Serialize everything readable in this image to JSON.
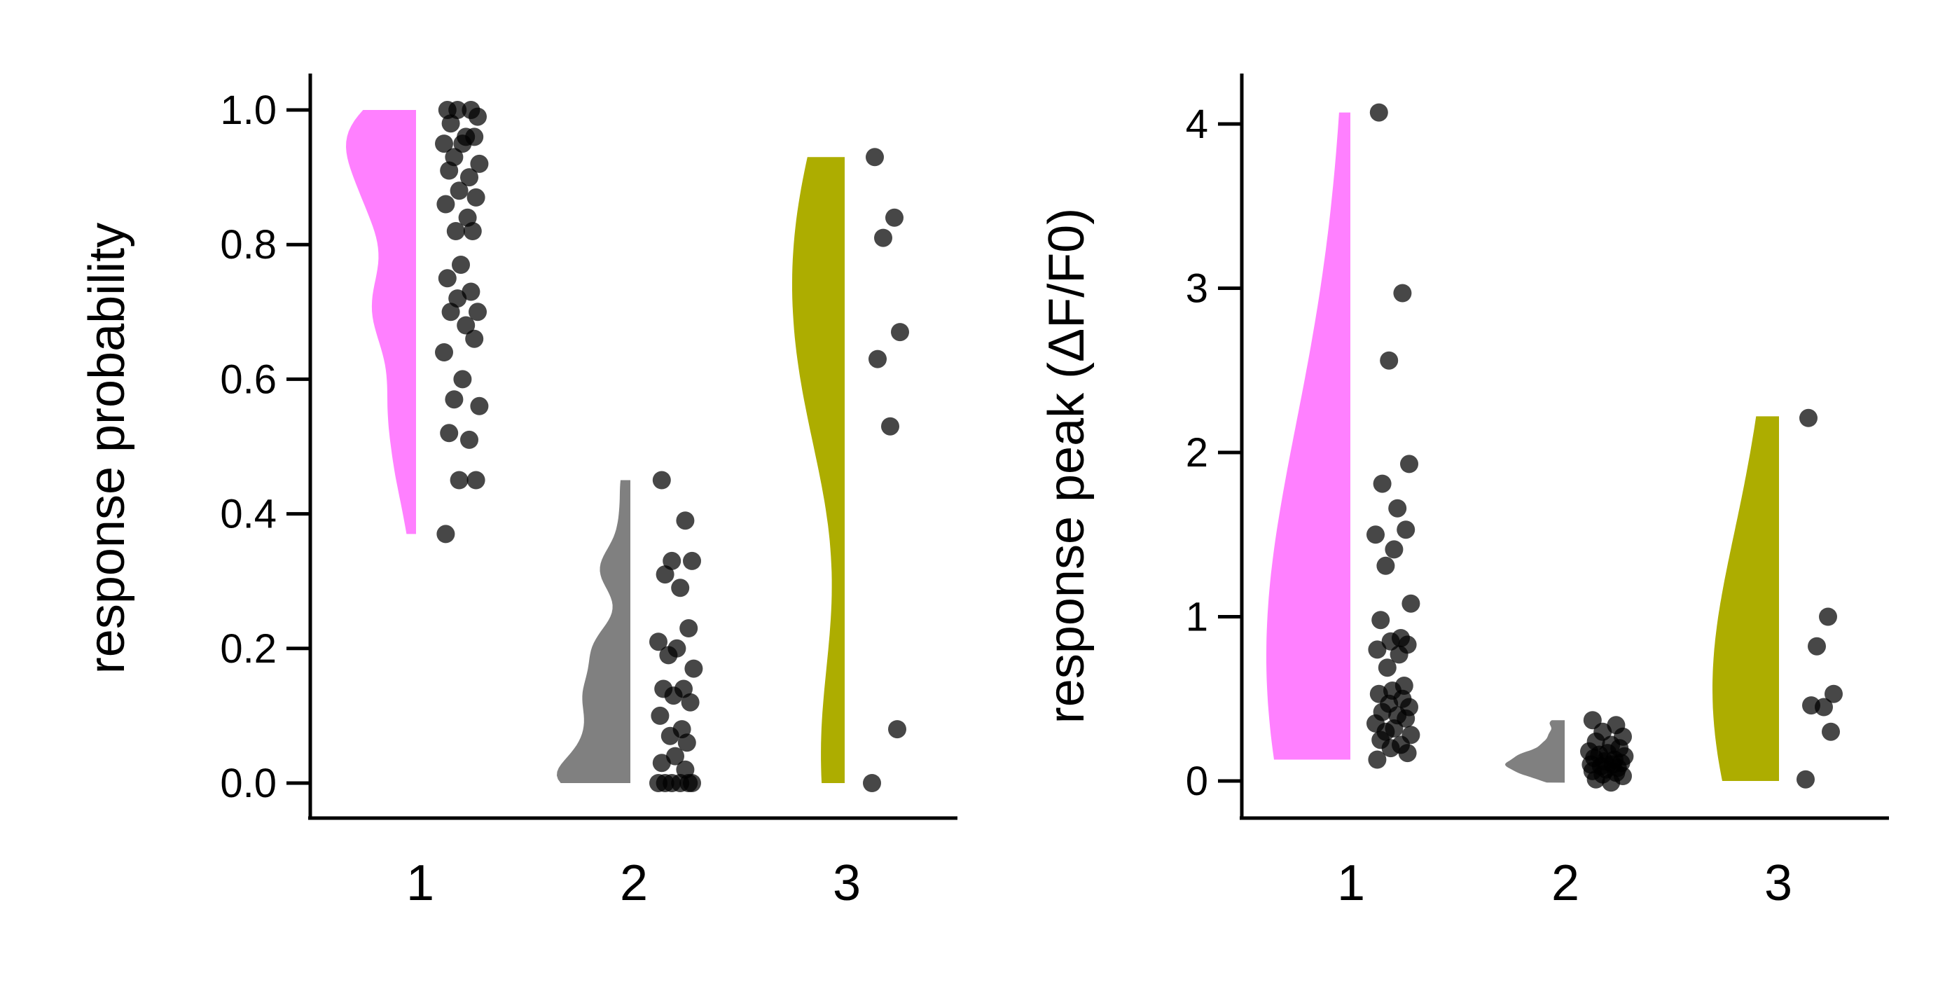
{
  "colors": {
    "group1": "#ff80ff",
    "group2": "#808080",
    "group3": "#adad00",
    "points": "#000000"
  },
  "chart_data": [
    {
      "type": "raincloud",
      "ylabel": "response probability",
      "ylim": [
        -0.05,
        1.05
      ],
      "yticks": [
        0.0,
        0.2,
        0.4,
        0.6,
        0.8,
        1.0
      ],
      "ytick_labels": [
        "0.0",
        "0.2",
        "0.4",
        "0.6",
        "0.8",
        "1.0"
      ],
      "categories": [
        "1",
        "2",
        "3"
      ],
      "groups": [
        {
          "name": "1",
          "values": [
            1.0,
            1.0,
            1.0,
            0.99,
            0.98,
            0.96,
            0.96,
            0.95,
            0.95,
            0.93,
            0.92,
            0.91,
            0.9,
            0.88,
            0.87,
            0.86,
            0.84,
            0.82,
            0.82,
            0.77,
            0.75,
            0.73,
            0.72,
            0.7,
            0.7,
            0.68,
            0.66,
            0.64,
            0.6,
            0.57,
            0.56,
            0.52,
            0.51,
            0.45,
            0.45,
            0.37
          ],
          "violin_range": [
            0.37,
            1.0
          ]
        },
        {
          "name": "2",
          "values": [
            0.45,
            0.39,
            0.33,
            0.33,
            0.31,
            0.29,
            0.23,
            0.21,
            0.2,
            0.19,
            0.17,
            0.14,
            0.14,
            0.13,
            0.12,
            0.1,
            0.08,
            0.07,
            0.06,
            0.04,
            0.03,
            0.02,
            0.0,
            0.0,
            0.0,
            0.0,
            0.0,
            0.0
          ],
          "violin_range": [
            0.0,
            0.45
          ]
        },
        {
          "name": "3",
          "values": [
            0.93,
            0.84,
            0.81,
            0.67,
            0.63,
            0.53,
            0.08,
            0.0
          ],
          "violin_range": [
            0.0,
            0.93
          ]
        }
      ]
    },
    {
      "type": "raincloud",
      "ylabel": "response peak (ΔF/F0)",
      "ylim": [
        -0.22,
        4.3
      ],
      "yticks": [
        0,
        1,
        2,
        3,
        4
      ],
      "ytick_labels": [
        "0",
        "1",
        "2",
        "3",
        "4"
      ],
      "categories": [
        "1",
        "2",
        "3"
      ],
      "groups": [
        {
          "name": "1",
          "values": [
            4.07,
            2.97,
            2.56,
            1.93,
            1.81,
            1.66,
            1.53,
            1.5,
            1.41,
            1.31,
            1.08,
            0.98,
            0.87,
            0.85,
            0.83,
            0.8,
            0.77,
            0.69,
            0.58,
            0.55,
            0.53,
            0.5,
            0.47,
            0.45,
            0.42,
            0.4,
            0.38,
            0.35,
            0.32,
            0.3,
            0.28,
            0.25,
            0.22,
            0.2,
            0.17,
            0.13
          ],
          "violin_range": [
            0.13,
            4.07
          ]
        },
        {
          "name": "2",
          "values": [
            0.37,
            0.34,
            0.3,
            0.27,
            0.24,
            0.22,
            0.2,
            0.18,
            0.17,
            0.16,
            0.15,
            0.14,
            0.13,
            0.12,
            0.11,
            0.1,
            0.1,
            0.09,
            0.08,
            0.07,
            0.06,
            0.05,
            0.04,
            0.03,
            0.01,
            -0.01
          ],
          "violin_range": [
            -0.01,
            0.37
          ]
        },
        {
          "name": "3",
          "values": [
            2.21,
            1.0,
            0.82,
            0.53,
            0.46,
            0.45,
            0.3,
            0.01
          ],
          "violin_range": [
            0.0,
            2.22
          ]
        }
      ]
    }
  ]
}
